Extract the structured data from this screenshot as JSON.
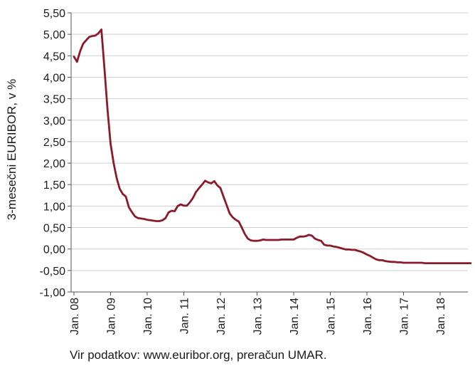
{
  "chart_data": {
    "type": "line",
    "title": "",
    "xlabel": "",
    "ylabel": "3-mesečni EURIBOR, v %",
    "ylim": [
      -1.0,
      5.5
    ],
    "yticks": [
      "-1,00",
      "-0,50",
      "0,00",
      "0,50",
      "1,00",
      "1,50",
      "2,00",
      "2,50",
      "3,00",
      "3,50",
      "4,00",
      "4,50",
      "5,00",
      "5,50"
    ],
    "xticks": [
      "Jan. 08",
      "Jan. 09",
      "Jan. 10",
      "Jan. 11",
      "Jan. 12",
      "Jan. 13",
      "Jan. 14",
      "Jan. 15",
      "Jan. 16",
      "Jan. 17",
      "Jan. 18"
    ],
    "grid": "horizontal",
    "line_color": "#8b1a2b",
    "series": [
      {
        "values": [
          4.48,
          4.36,
          4.6,
          4.78,
          4.86,
          4.94,
          4.96,
          4.97,
          5.02,
          5.11,
          4.2,
          3.25,
          2.45,
          2.0,
          1.65,
          1.4,
          1.28,
          1.22,
          0.97,
          0.86,
          0.76,
          0.72,
          0.71,
          0.7,
          0.68,
          0.67,
          0.66,
          0.65,
          0.65,
          0.67,
          0.72,
          0.85,
          0.89,
          0.88,
          1.0,
          1.04,
          1.01,
          1.01,
          1.09,
          1.19,
          1.33,
          1.42,
          1.5,
          1.59,
          1.55,
          1.53,
          1.58,
          1.48,
          1.42,
          1.22,
          1.03,
          0.83,
          0.74,
          0.68,
          0.64,
          0.5,
          0.35,
          0.24,
          0.2,
          0.19,
          0.19,
          0.2,
          0.22,
          0.21,
          0.21,
          0.21,
          0.21,
          0.21,
          0.22,
          0.22,
          0.22,
          0.22,
          0.22,
          0.26,
          0.29,
          0.29,
          0.3,
          0.33,
          0.31,
          0.24,
          0.21,
          0.19,
          0.1,
          0.08,
          0.08,
          0.06,
          0.05,
          0.03,
          0.01,
          -0.01,
          -0.01,
          -0.02,
          -0.02,
          -0.04,
          -0.06,
          -0.09,
          -0.13,
          -0.16,
          -0.2,
          -0.24,
          -0.26,
          -0.26,
          -0.28,
          -0.29,
          -0.3,
          -0.3,
          -0.31,
          -0.31,
          -0.32,
          -0.32,
          -0.32,
          -0.32,
          -0.32,
          -0.32,
          -0.32,
          -0.33,
          -0.33,
          -0.33,
          -0.33,
          -0.33,
          -0.33,
          -0.33,
          -0.33,
          -0.33,
          -0.33,
          -0.33,
          -0.33,
          -0.33,
          -0.33,
          -0.33,
          -0.33
        ]
      }
    ]
  },
  "source_note": "Vir podatkov: www.euribor.org, preračun UMAR."
}
